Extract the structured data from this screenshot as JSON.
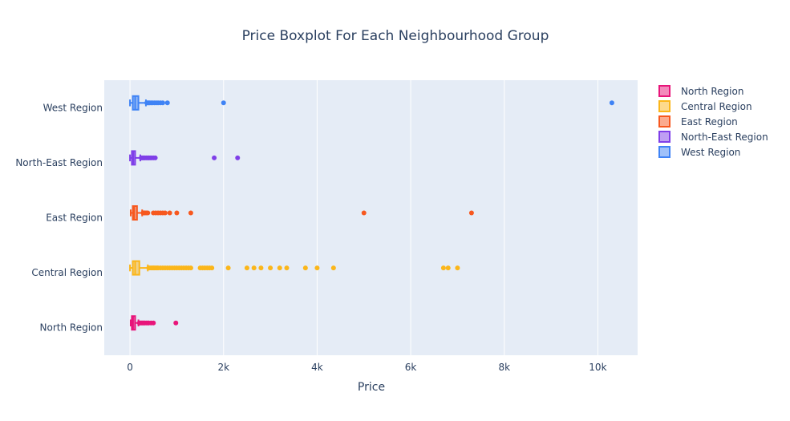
{
  "chart_data": {
    "type": "box",
    "orientation": "horizontal",
    "title": "Price Boxplot For Each Neighbourhood Group",
    "xlabel": "Price",
    "ylabel": "",
    "xlim": [
      -550,
      10850
    ],
    "xticks": [
      0,
      2000,
      4000,
      6000,
      8000,
      10000
    ],
    "xtick_labels": [
      "0",
      "2k",
      "4k",
      "6k",
      "8k",
      "10k"
    ],
    "grid": true,
    "legend_position": "top-right",
    "legend": [
      "North Region",
      "Central Region",
      "East Region",
      "North-East Region",
      "West Region"
    ],
    "categories": [
      "North Region",
      "Central Region",
      "East Region",
      "North-East Region",
      "West Region"
    ],
    "series": [
      {
        "name": "North Region",
        "color": "#e8157a",
        "min": 15,
        "q1": 40,
        "median": 65,
        "q3": 110,
        "max": 180,
        "outliers": [
          200,
          220,
          240,
          260,
          280,
          300,
          320,
          350,
          380,
          400,
          450,
          500,
          980
        ]
      },
      {
        "name": "Central Region",
        "color": "#fbb61a",
        "min": 0,
        "q1": 60,
        "median": 110,
        "q3": 200,
        "max": 380,
        "outliers": [
          400,
          420,
          450,
          480,
          500,
          520,
          550,
          580,
          600,
          650,
          700,
          750,
          800,
          850,
          900,
          950,
          1000,
          1050,
          1100,
          1150,
          1200,
          1250,
          1300,
          1500,
          1550,
          1600,
          1650,
          1700,
          1750,
          2100,
          2500,
          2650,
          2800,
          3000,
          3200,
          3350,
          3750,
          4000,
          4350,
          6700,
          6800,
          7000
        ]
      },
      {
        "name": "East Region",
        "color": "#f7581f",
        "min": 15,
        "q1": 60,
        "median": 90,
        "q3": 150,
        "max": 260,
        "outliers": [
          280,
          300,
          320,
          350,
          380,
          500,
          550,
          600,
          650,
          700,
          750,
          850,
          1000,
          1300,
          5000,
          7300
        ]
      },
      {
        "name": "North-East Region",
        "color": "#7f3fe8",
        "min": 0,
        "q1": 40,
        "median": 70,
        "q3": 110,
        "max": 220,
        "outliers": [
          240,
          260,
          280,
          300,
          320,
          350,
          380,
          400,
          430,
          460,
          500,
          540,
          1800,
          2300
        ]
      },
      {
        "name": "West Region",
        "color": "#3f83f5",
        "min": 0,
        "q1": 60,
        "median": 110,
        "q3": 180,
        "max": 340,
        "outliers": [
          360,
          380,
          400,
          420,
          450,
          480,
          520,
          560,
          600,
          650,
          700,
          800,
          2000,
          10300
        ]
      }
    ]
  }
}
